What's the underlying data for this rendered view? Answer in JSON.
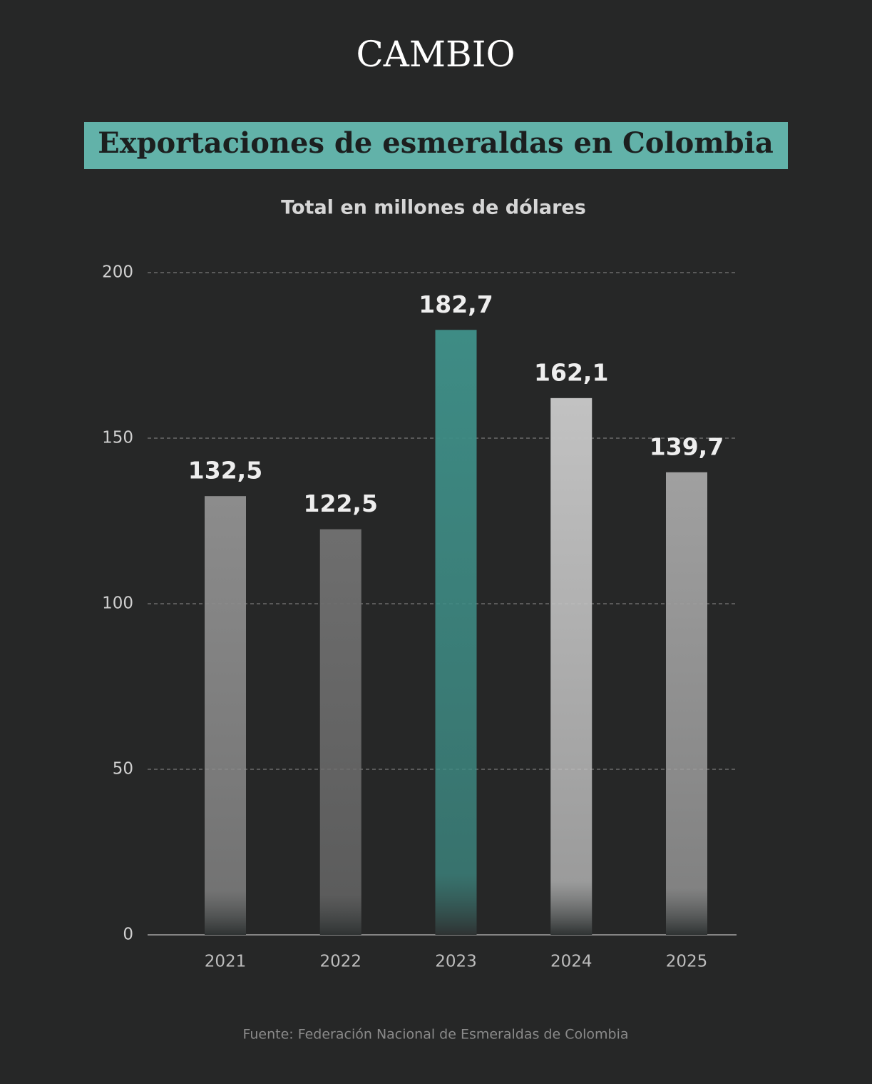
{
  "brand": "CAMBIO",
  "chart_data": {
    "type": "bar",
    "title": "Exportaciones de esmeraldas en Colombia",
    "subtitle": "Total en millones de dólares",
    "categories": [
      "2021",
      "2022",
      "2023",
      "2024",
      "2025"
    ],
    "values": [
      132.5,
      122.5,
      182.7,
      162.1,
      139.7
    ],
    "value_labels": [
      "132,5",
      "122,5",
      "182,7",
      "162,1",
      "139,7"
    ],
    "colors": [
      "#8c8c8c",
      "#6e6e6e",
      "#3e8c85",
      "#c2c2c2",
      "#a0a0a0"
    ],
    "ylim": [
      0,
      200
    ],
    "yticks": [
      0,
      50,
      100,
      150,
      200
    ],
    "grid": true,
    "source": "Fuente: Federación Nacional de Esmeraldas de Colombia"
  }
}
